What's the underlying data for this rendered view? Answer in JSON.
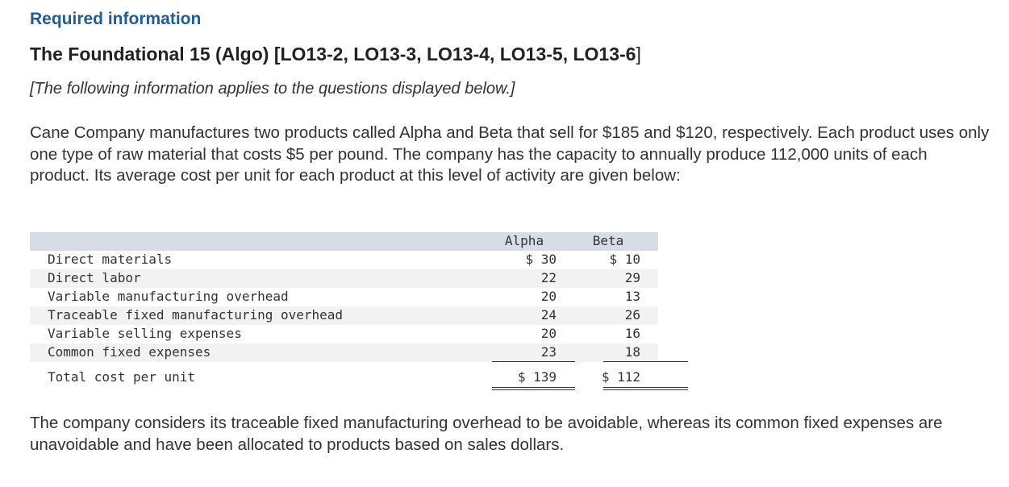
{
  "header": {
    "required": "Required information",
    "title_main": "The Foundational 15 (Algo) [LO13-2, LO13-3, LO13-4, LO13-5, LO13-6",
    "title_bracket": "]",
    "subtitle": "[The following information applies to the questions displayed below.]"
  },
  "intro": "Cane Company manufactures two products called Alpha and Beta that sell for $185 and $120, respectively. Each product uses only one type of raw material that costs $5 per pound. The company has the capacity to annually produce 112,000 units of each product. Its average cost per unit for each product at this level of activity are given below:",
  "table": {
    "col_alpha": "Alpha",
    "col_beta": "Beta",
    "rows": [
      {
        "label": "Direct materials",
        "alpha": "$ 30",
        "beta": "$ 10"
      },
      {
        "label": "Direct labor",
        "alpha": "22",
        "beta": "29"
      },
      {
        "label": "Variable manufacturing overhead",
        "alpha": "20",
        "beta": "13"
      },
      {
        "label": "Traceable fixed manufacturing overhead",
        "alpha": "24",
        "beta": "26"
      },
      {
        "label": "Variable selling expenses",
        "alpha": "20",
        "beta": "16"
      },
      {
        "label": "Common fixed expenses",
        "alpha": "23",
        "beta": "18"
      }
    ],
    "total": {
      "label": "Total cost per unit",
      "alpha": "$ 139",
      "beta": "$ 112"
    }
  },
  "closing": "The company considers its traceable fixed manufacturing overhead to be avoidable, whereas its common fixed expenses are unavoidable and have been allocated to products based on sales dollars."
}
